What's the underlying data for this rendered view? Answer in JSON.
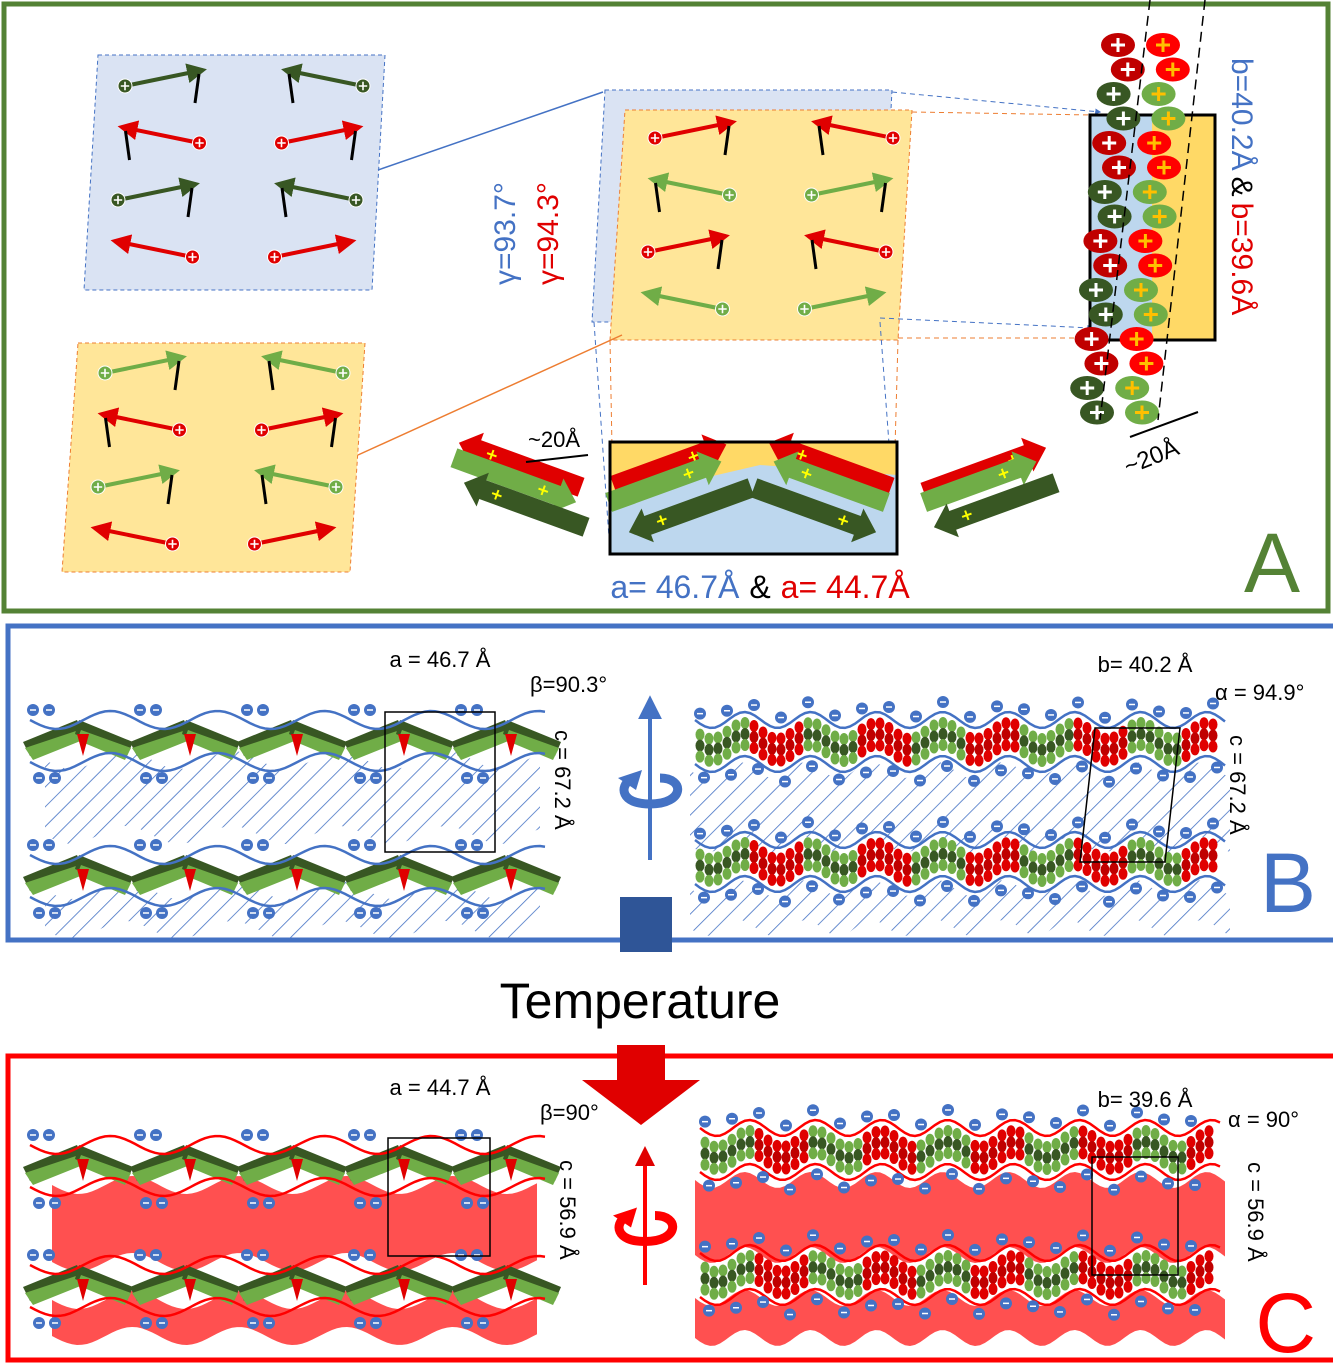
{
  "panel_a": {
    "label": "A",
    "gamma_blue": "γ=93.7°",
    "gamma_red": "γ=94.3°",
    "b_blue": "b=40.2Å",
    "b_sep": "&",
    "b_red": "b=39.6Å",
    "spacing_left": "~20Å",
    "spacing_right": "~20Å",
    "a_blue": "a= 46.7Å",
    "a_sep": "&",
    "a_red": "a= 44.7Å"
  },
  "panel_b": {
    "label": "B",
    "a": "a = 46.7 Å",
    "beta": "β=90.3°",
    "c_left": "c = 67.2 Å",
    "b": "b= 40.2 Å",
    "alpha": "α = 94.9°",
    "c_right": "c = 67.2 Å"
  },
  "temperature": "Temperature",
  "panel_c": {
    "label": "C",
    "a": "a = 44.7 Å",
    "beta": "β=90°",
    "c_left": "c = 56.9 Å",
    "b": "b= 39.6 Å",
    "alpha": "α = 90°",
    "c_right": "c = 56.9 Å"
  }
}
